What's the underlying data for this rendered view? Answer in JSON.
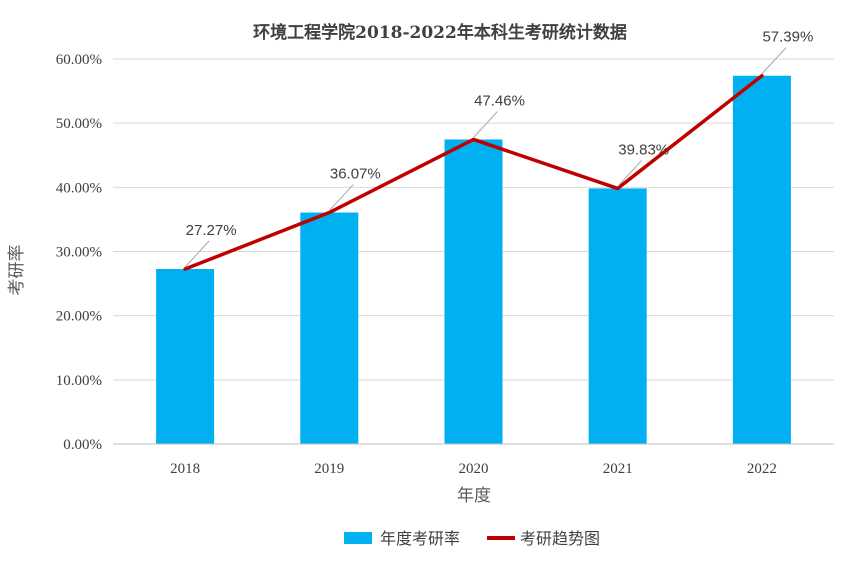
{
  "chart_data": {
    "type": "bar",
    "title": "环境工程学院2018-2022年本科生考研统计数据",
    "xlabel": "年度",
    "ylabel": "考研率",
    "categories": [
      "2018",
      "2019",
      "2020",
      "2021",
      "2022"
    ],
    "ylim": [
      0,
      60
    ],
    "ytick_values": [
      0,
      10,
      20,
      30,
      40,
      50,
      60
    ],
    "ytick_labels": [
      "0.00%",
      "10.00%",
      "20.00%",
      "30.00%",
      "40.00%",
      "50.00%",
      "60.00%"
    ],
    "series": [
      {
        "name": "年度考研率",
        "kind": "bar",
        "color": "#00B0F0",
        "values": [
          27.27,
          36.07,
          47.46,
          39.83,
          57.39
        ]
      },
      {
        "name": "考研趋势图",
        "kind": "line",
        "color": "#C00000",
        "values": [
          27.27,
          36.07,
          47.46,
          39.83,
          57.39
        ]
      }
    ],
    "data_labels": [
      "27.27%",
      "36.07%",
      "47.46%",
      "39.83%",
      "57.39%"
    ],
    "grid": true,
    "legend_position": "bottom"
  }
}
